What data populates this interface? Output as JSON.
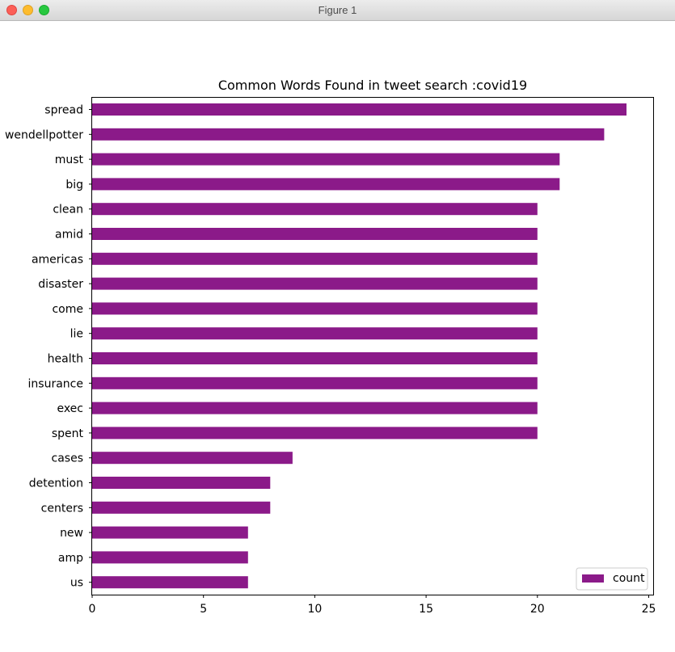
{
  "window": {
    "title": "Figure 1"
  },
  "chart_data": {
    "type": "bar",
    "orientation": "horizontal",
    "title": "Common Words Found in tweet search :covid19",
    "xlabel": "",
    "ylabel": "",
    "categories": [
      "spread",
      "wendellpotter",
      "must",
      "big",
      "clean",
      "amid",
      "americas",
      "disaster",
      "come",
      "lie",
      "health",
      "insurance",
      "exec",
      "spent",
      "cases",
      "detention",
      "centers",
      "new",
      "amp",
      "us"
    ],
    "series": [
      {
        "name": "count",
        "values": [
          24,
          23,
          21,
          21,
          20,
          20,
          20,
          20,
          20,
          20,
          20,
          20,
          20,
          20,
          9,
          8,
          8,
          7,
          7,
          7
        ],
        "color": "#8b1a89"
      }
    ],
    "xlim": [
      0,
      25.2
    ],
    "xticks": [
      0,
      5,
      10,
      15,
      20,
      25
    ],
    "grid": false,
    "legend_position": "bottom-right"
  }
}
